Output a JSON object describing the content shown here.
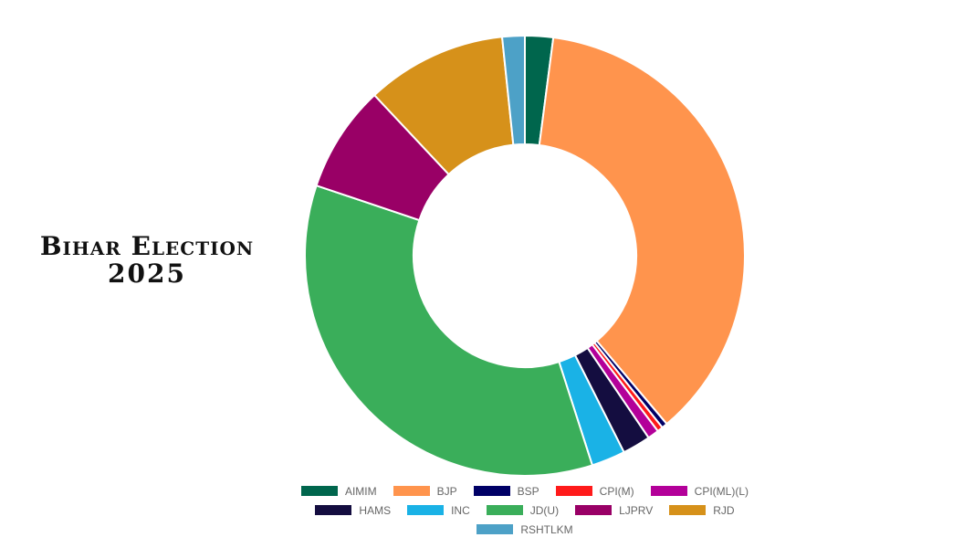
{
  "title": {
    "line1": "Bihar Election",
    "line2": "2025"
  },
  "chart_data": {
    "type": "pie",
    "variant": "donut",
    "categories": [
      "AIMIM",
      "BJP",
      "BSP",
      "CPI(M)",
      "CPI(ML)(L)",
      "HAMS",
      "INC",
      "JD(U)",
      "LJPRV",
      "RJD",
      "RSHTLKM"
    ],
    "values": [
      5,
      89,
      1,
      1,
      2,
      5,
      6,
      85,
      19,
      25,
      4
    ],
    "colors": [
      "#00664d",
      "#ff944d",
      "#000066",
      "#ff1a1a",
      "#b30099",
      "#140d40",
      "#1ab2e6",
      "#3aae5a",
      "#990066",
      "#d6911a",
      "#4da1c7"
    ],
    "legend_position": "bottom"
  }
}
